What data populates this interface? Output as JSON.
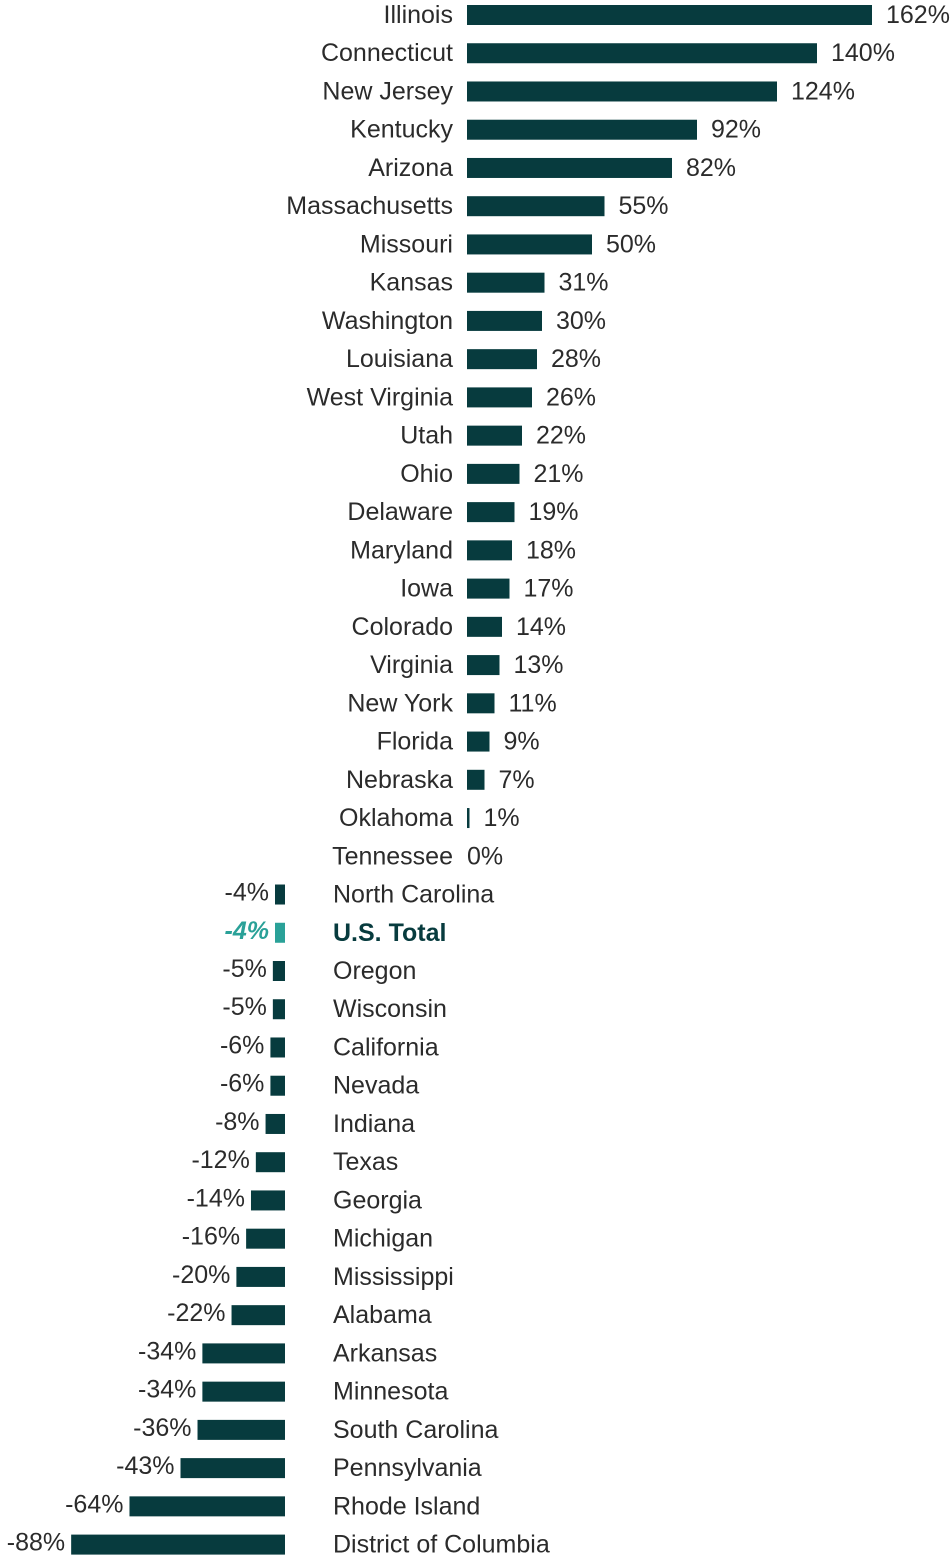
{
  "chart_data": {
    "type": "bar",
    "orientation": "horizontal",
    "value_suffix": "%",
    "highlight_category": "U.S. Total",
    "colors": {
      "bar": "#073b3e",
      "highlight": "#2aa198",
      "text": "#2b2b2b"
    },
    "categories": [
      "Illinois",
      "Connecticut",
      "New Jersey",
      "Kentucky",
      "Arizona",
      "Massachusetts",
      "Missouri",
      "Kansas",
      "Washington",
      "Louisiana",
      "West Virginia",
      "Utah",
      "Ohio",
      "Delaware",
      "Maryland",
      "Iowa",
      "Colorado",
      "Virginia",
      "New York",
      "Florida",
      "Nebraska",
      "Oklahoma",
      "Tennessee",
      "North Carolina",
      "U.S. Total",
      "Oregon",
      "Wisconsin",
      "California",
      "Nevada",
      "Indiana",
      "Texas",
      "Georgia",
      "Michigan",
      "Mississippi",
      "Alabama",
      "Arkansas",
      "Minnesota",
      "South Carolina",
      "Pennsylvania",
      "Rhode Island",
      "District of Columbia"
    ],
    "values": [
      162,
      140,
      124,
      92,
      82,
      55,
      50,
      31,
      30,
      28,
      26,
      22,
      21,
      19,
      18,
      17,
      14,
      13,
      11,
      9,
      7,
      1,
      0,
      -4,
      -4,
      -5,
      -5,
      -6,
      -6,
      -8,
      -12,
      -14,
      -16,
      -20,
      -22,
      -34,
      -34,
      -36,
      -43,
      -64,
      -88
    ]
  }
}
